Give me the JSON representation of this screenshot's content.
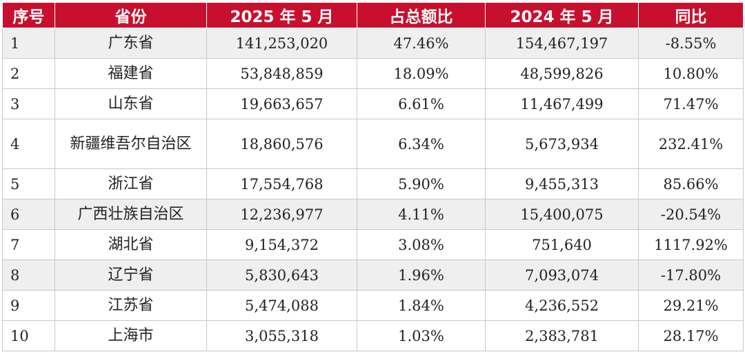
{
  "table": {
    "headers": [
      "序号",
      "省份",
      "2025 年 5 月",
      "占总额比",
      "2024 年 5 月",
      "同比"
    ],
    "rows": [
      [
        "1",
        "广东省",
        "141,253,020",
        "47.46%",
        "154,467,197",
        "-8.55%"
      ],
      [
        "2",
        "福建省",
        "53,848,859",
        "18.09%",
        "48,599,826",
        "10.80%"
      ],
      [
        "3",
        "山东省",
        "19,663,657",
        "6.61%",
        "11,467,499",
        "71.47%"
      ],
      [
        "4",
        "新疆维吾尔自治区",
        "18,860,576",
        "6.34%",
        "5,673,934",
        "232.41%"
      ],
      [
        "5",
        "浙江省",
        "17,554,768",
        "5.90%",
        "9,455,313",
        "85.66%"
      ],
      [
        "6",
        "广西壮族自治区",
        "12,236,977",
        "4.11%",
        "15,400,075",
        "-20.54%"
      ],
      [
        "7",
        "湖北省",
        "9,154,372",
        "3.08%",
        "751,640",
        "1117.92%"
      ],
      [
        "8",
        "辽宁省",
        "5,830,643",
        "1.96%",
        "7,093,074",
        "-17.80%"
      ],
      [
        "9",
        "江苏省",
        "5,474,088",
        "1.84%",
        "4,236,552",
        "29.21%"
      ],
      [
        "10",
        "上海市",
        "3,055,318",
        "1.03%",
        "2,383,781",
        "28.17%"
      ]
    ]
  },
  "colors": {
    "header_bg": "#c8102e",
    "header_text": "#ffffff",
    "alt_row_bg": "#efefef",
    "grid": "#c8c8c8"
  }
}
